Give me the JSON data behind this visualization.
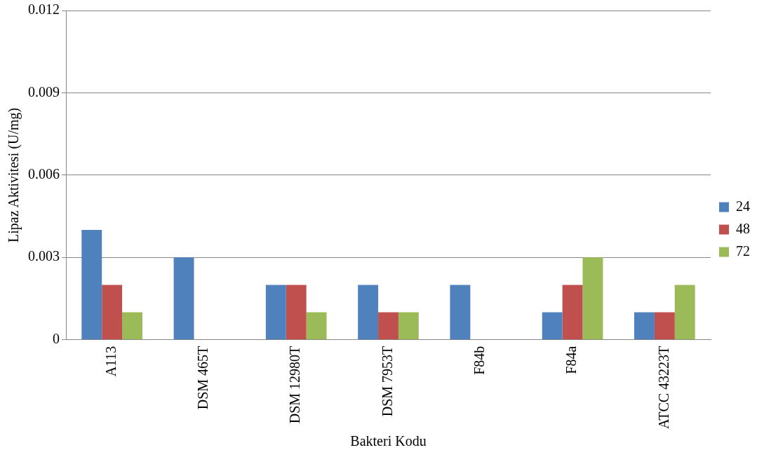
{
  "chart_data": {
    "type": "bar",
    "xlabel": "Bakteri Kodu",
    "ylabel": "Lipaz Aktivitesi (U/mg)",
    "categories": [
      "A113",
      "DSM 465T",
      "DSM 12980T",
      "DSM 7953T",
      "F84b",
      "F84a",
      "ATCC 43223T"
    ],
    "series": [
      {
        "name": "24",
        "color": "#4f81bd",
        "values": [
          0.004,
          0.003,
          0.002,
          0.002,
          0.002,
          0.001,
          0.001
        ]
      },
      {
        "name": "48",
        "color": "#c0504d",
        "values": [
          0.002,
          0,
          0.002,
          0.001,
          0,
          0.002,
          0.001
        ]
      },
      {
        "name": "72",
        "color": "#9bbb59",
        "values": [
          0.001,
          0,
          0.001,
          0.001,
          0,
          0.003,
          0.002
        ]
      }
    ],
    "ylim": [
      0,
      0.012
    ],
    "yticks": [
      0,
      0.003,
      0.006,
      0.009,
      0.012
    ],
    "grid": "y",
    "legend": "right"
  }
}
